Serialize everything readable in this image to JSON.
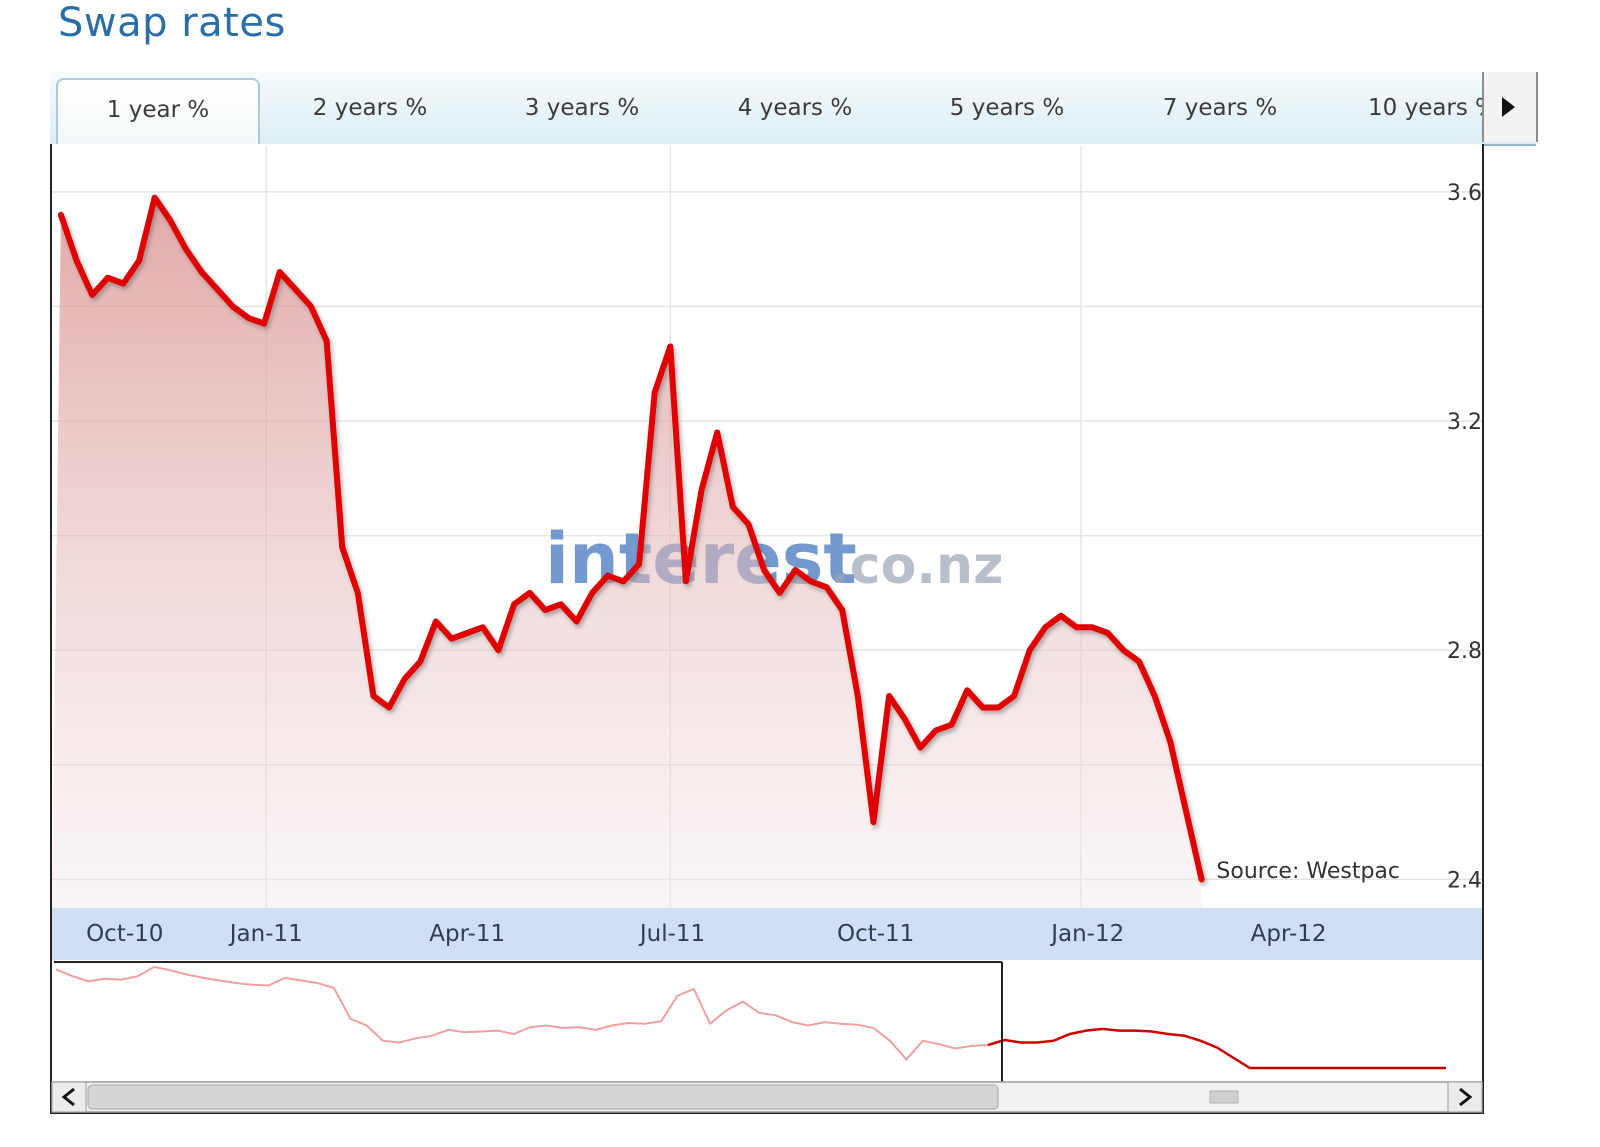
{
  "page": {
    "title": "Swap rates"
  },
  "tabs": [
    {
      "label": "1 year %",
      "active": true
    },
    {
      "label": "2 years %",
      "active": false
    },
    {
      "label": "3 years %",
      "active": false
    },
    {
      "label": "4 years %",
      "active": false
    },
    {
      "label": "5 years %",
      "active": false
    },
    {
      "label": "7 years %",
      "active": false
    },
    {
      "label": "10 years %",
      "active": false
    }
  ],
  "watermark": {
    "text_main": "interest",
    "text_suffix": ".co.nz"
  },
  "chart_data": {
    "type": "area",
    "title": "",
    "xlabel": "",
    "ylabel": "",
    "source": "Source: Westpac",
    "x_ticks": [
      "Oct-10",
      "Jan-11",
      "Apr-11",
      "Jul-11",
      "Oct-11",
      "Jan-12",
      "Apr-12"
    ],
    "y_ticks": [
      "3.6",
      "3.2",
      "2.8",
      "2.4"
    ],
    "ylim": [
      2.35,
      3.68
    ],
    "grid": true,
    "line_color": "#e00000",
    "fill_color": "#d98c8c",
    "series": [
      {
        "x": [
          "2010-10-01",
          "2010-10-08",
          "2010-10-15",
          "2010-10-22",
          "2010-10-29",
          "2010-11-05",
          "2010-11-12",
          "2010-11-19",
          "2010-11-26",
          "2010-12-03",
          "2010-12-10",
          "2010-12-17",
          "2010-12-24",
          "2010-12-31",
          "2011-01-07",
          "2011-01-14",
          "2011-01-21",
          "2011-01-28",
          "2011-02-04",
          "2011-02-11",
          "2011-02-18",
          "2011-02-25",
          "2011-03-04",
          "2011-03-11",
          "2011-03-18",
          "2011-03-25",
          "2011-04-01",
          "2011-04-08",
          "2011-04-15",
          "2011-04-22",
          "2011-04-29",
          "2011-05-06",
          "2011-05-13",
          "2011-05-20",
          "2011-05-27",
          "2011-06-03",
          "2011-06-10",
          "2011-06-17",
          "2011-06-24",
          "2011-07-01",
          "2011-07-08",
          "2011-07-15",
          "2011-07-22",
          "2011-07-29",
          "2011-08-05",
          "2011-08-12",
          "2011-08-19",
          "2011-08-26",
          "2011-09-02",
          "2011-09-09",
          "2011-09-16",
          "2011-09-23",
          "2011-09-30",
          "2011-10-07",
          "2011-10-14",
          "2011-10-21",
          "2011-10-28",
          "2011-11-04",
          "2011-11-11",
          "2011-11-18",
          "2011-11-25",
          "2011-12-02",
          "2011-12-09",
          "2011-12-16",
          "2011-12-23",
          "2011-12-30",
          "2012-01-06",
          "2012-01-13",
          "2012-01-20",
          "2012-01-27",
          "2012-02-03",
          "2012-02-10",
          "2012-02-17",
          "2012-02-24",
          "2012-03-02",
          "2012-03-09",
          "2012-03-16",
          "2012-03-23",
          "2012-03-30",
          "2012-04-06",
          "2012-04-13",
          "2012-04-20",
          "2012-04-27",
          "2012-05-04",
          "2012-05-11",
          "2012-05-18"
        ],
        "values": [
          3.56,
          3.48,
          3.42,
          3.45,
          3.44,
          3.48,
          3.59,
          3.55,
          3.5,
          3.46,
          3.43,
          3.4,
          3.38,
          3.37,
          3.46,
          3.43,
          3.4,
          3.34,
          2.98,
          2.9,
          2.72,
          2.7,
          2.75,
          2.78,
          2.85,
          2.82,
          2.83,
          2.84,
          2.8,
          2.88,
          2.9,
          2.87,
          2.88,
          2.85,
          2.9,
          2.93,
          2.92,
          2.95,
          3.25,
          3.33,
          2.92,
          3.08,
          3.18,
          3.05,
          3.02,
          2.94,
          2.9,
          2.94,
          2.92,
          2.91,
          2.87,
          2.72,
          2.5,
          2.72,
          2.68,
          2.63,
          2.66,
          2.67,
          2.73,
          2.7,
          2.7,
          2.72,
          2.8,
          2.84,
          2.86,
          2.84,
          2.84,
          2.83,
          2.8,
          2.78,
          2.72,
          2.64,
          2.52,
          2.4,
          2.4,
          2.4,
          2.4,
          2.4,
          2.4,
          2.4,
          2.4,
          2.4,
          2.4,
          2.4,
          2.4,
          2.4
        ]
      }
    ]
  },
  "navigator": {
    "scroll_left_icon": "chevron-left-icon",
    "scroll_right_icon": "chevron-right-icon",
    "tab_scroll_icon": "triangle-right-icon"
  }
}
